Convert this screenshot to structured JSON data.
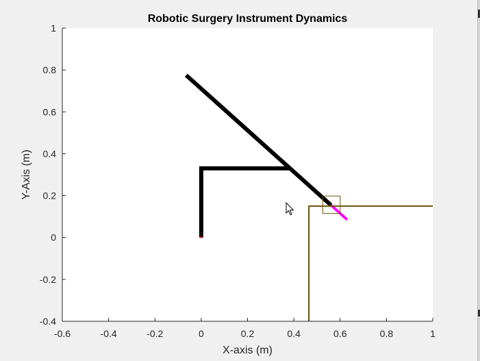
{
  "chart_data": {
    "type": "line",
    "title": "Robotic Surgery Instrument Dynamics",
    "xlabel": "X-axis (m)",
    "ylabel": "Y-Axis (m)",
    "xlim": [
      -0.6,
      1
    ],
    "ylim": [
      -0.4,
      1
    ],
    "x_ticks": [
      "-0.6",
      "-0.4",
      "-0.2",
      "0",
      "0.2",
      "0.4",
      "0.6",
      "0.8",
      "1"
    ],
    "y_ticks": [
      "1",
      "0.8",
      "0.6",
      "0.4",
      "0.2",
      "0",
      "-0.2",
      "-0.4"
    ],
    "grid": false,
    "series": [
      {
        "color": "#000000",
        "x": [
          0,
          0,
          0.38
        ],
        "y": [
          0,
          0.33,
          0.33
        ]
      },
      {
        "color": "#000000",
        "x": [
          -0.065,
          0.56
        ],
        "y": [
          0.775,
          0.155
        ]
      },
      {
        "color": "#ff00ff",
        "x": [
          0.56,
          0.63
        ],
        "y": [
          0.155,
          0.085
        ]
      },
      {
        "color": "#6b5408",
        "x": [
          0.465,
          0.465,
          1
        ],
        "y": [
          -0.4,
          0.15,
          0.15
        ]
      }
    ],
    "target_box": {
      "color": "#6b5408",
      "x": [
        0.525,
        0.6
      ],
      "y": [
        0.115,
        0.198
      ]
    },
    "origin_marker": {
      "color": "#ff0000",
      "x": 0,
      "y": 0
    }
  },
  "icons": {
    "cursor": "mouse-pointer-icon"
  }
}
